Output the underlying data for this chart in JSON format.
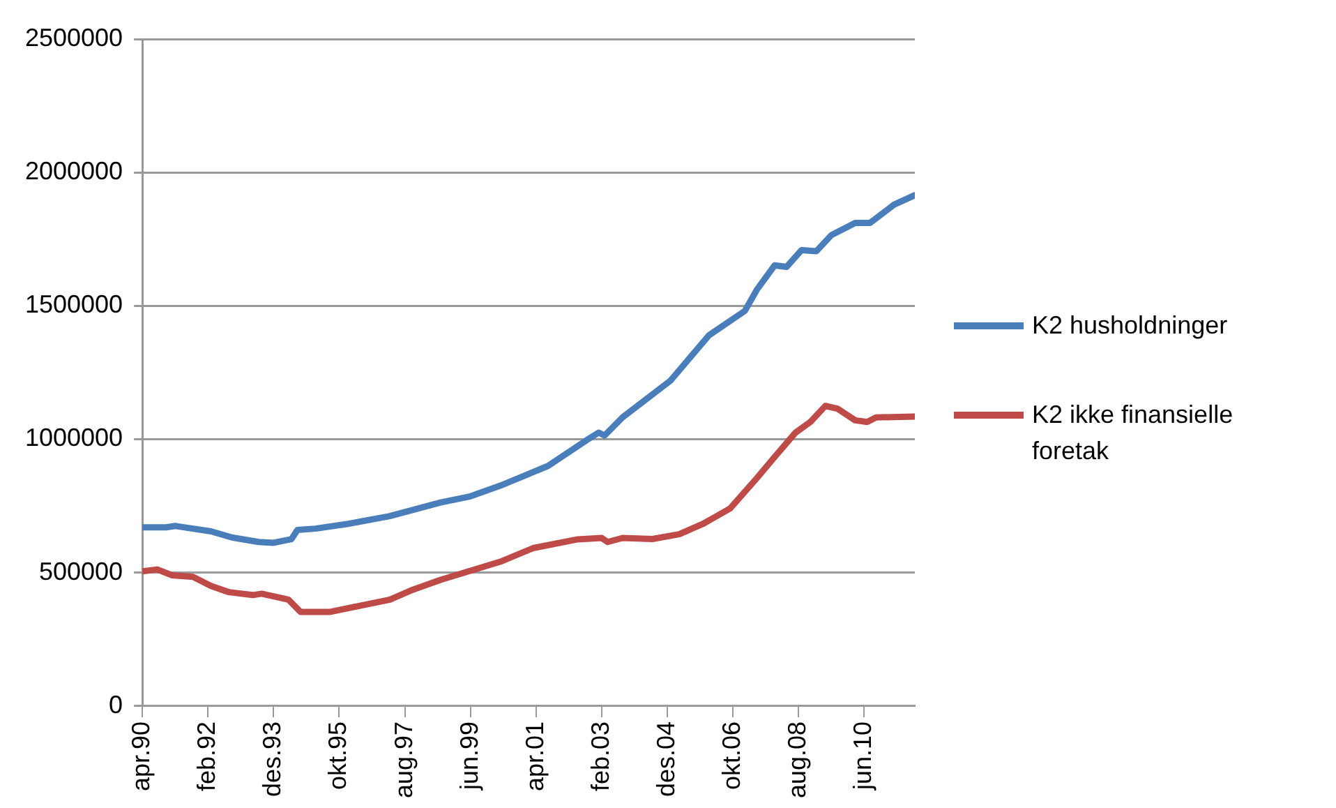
{
  "chart_data": {
    "type": "line",
    "legend": "right",
    "grid": "y",
    "marker": "none",
    "line_style": "solid",
    "xlim": [
      "1990-04",
      "2011-11"
    ],
    "xticks": [
      {
        "value": "1990-04",
        "label": "apr.90"
      },
      {
        "value": "1992-02",
        "label": "feb.92"
      },
      {
        "value": "1993-12",
        "label": "des.93"
      },
      {
        "value": "1995-10",
        "label": "okt.95"
      },
      {
        "value": "1997-08",
        "label": "aug.97"
      },
      {
        "value": "1999-06",
        "label": "jun.99"
      },
      {
        "value": "2001-04",
        "label": "apr.01"
      },
      {
        "value": "2003-02",
        "label": "feb.03"
      },
      {
        "value": "2004-12",
        "label": "des.04"
      },
      {
        "value": "2006-10",
        "label": "okt.06"
      },
      {
        "value": "2008-08",
        "label": "aug.08"
      },
      {
        "value": "2010-06",
        "label": "jun.10"
      }
    ],
    "ylim": [
      0,
      2500000
    ],
    "yticks": [
      0,
      500000,
      1000000,
      1500000,
      2000000,
      2500000
    ],
    "series": [
      {
        "name": "K2 husholdninger",
        "color": "#4a7ebb",
        "x": [
          "1990-04",
          "1990-12",
          "1991-03",
          "1992-03",
          "1992-10",
          "1993-07",
          "1993-12",
          "1994-06",
          "1994-08",
          "1995-02",
          "1996-01",
          "1997-03",
          "1998-08",
          "1999-06",
          "2000-04",
          "2001-03",
          "2001-08",
          "2002-09",
          "2003-01",
          "2003-03",
          "2003-09",
          "2005-01",
          "2006-02",
          "2007-02",
          "2007-06",
          "2007-12",
          "2008-04",
          "2008-09",
          "2009-02",
          "2009-07",
          "2010-03",
          "2010-08",
          "2011-04",
          "2011-11"
        ],
        "values": [
          670000,
          670000,
          675000,
          655000,
          632000,
          615000,
          612000,
          626000,
          660000,
          665000,
          683000,
          712000,
          763000,
          786000,
          826000,
          877000,
          900000,
          997000,
          1025000,
          1014000,
          1082000,
          1219000,
          1390000,
          1481000,
          1560000,
          1652000,
          1646000,
          1709000,
          1705000,
          1765000,
          1811000,
          1811000,
          1879000,
          1915000
        ]
      },
      {
        "name": "K2 ikke finansielle foretak",
        "color": "#be4b48",
        "x": [
          "1990-04",
          "1990-09",
          "1991-02",
          "1991-09",
          "1992-03",
          "1992-09",
          "1993-05",
          "1993-08",
          "1994-05",
          "1994-07",
          "1994-09",
          "1995-07",
          "1996-05",
          "1997-03",
          "1997-10",
          "1998-08",
          "1999-06",
          "2000-04",
          "2001-03",
          "2002-06",
          "2003-02",
          "2003-04",
          "2003-09",
          "2004-07",
          "2005-04",
          "2005-12",
          "2006-09",
          "2007-06",
          "2007-12",
          "2008-07",
          "2008-12",
          "2009-05",
          "2009-09",
          "2010-03",
          "2010-07",
          "2010-10",
          "2011-11"
        ],
        "values": [
          505000,
          512000,
          490000,
          484000,
          450000,
          427000,
          416000,
          421000,
          399000,
          376000,
          353000,
          353000,
          376000,
          399000,
          433000,
          473000,
          507000,
          541000,
          592000,
          625000,
          630000,
          615000,
          630000,
          626000,
          644000,
          683000,
          740000,
          854000,
          934000,
          1025000,
          1065000,
          1125000,
          1115000,
          1071000,
          1065000,
          1082000,
          1085000
        ]
      }
    ]
  }
}
